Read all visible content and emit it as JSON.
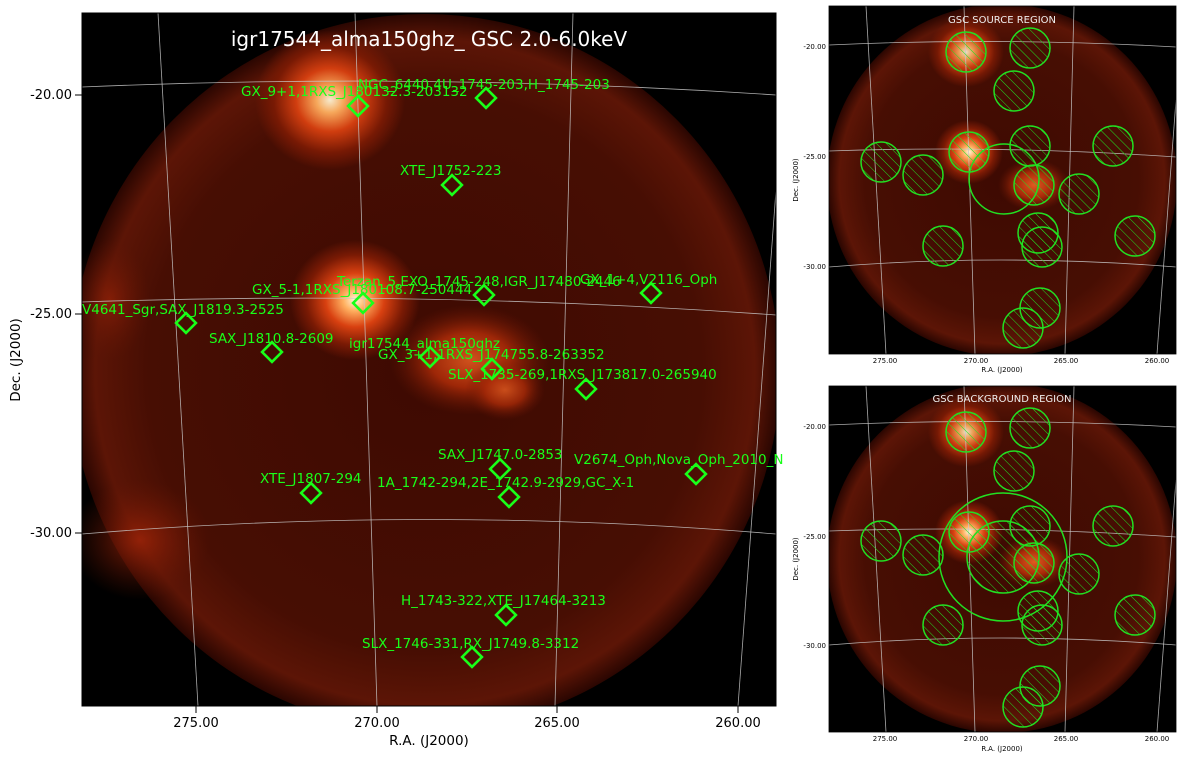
{
  "main": {
    "title": "igr17544_alma150ghz_ GSC 2.0-6.0keV",
    "xlabel": "R.A. (J2000)",
    "ylabel": "Dec. (J2000)",
    "xticks": [
      "275.00",
      "270.00",
      "265.00",
      "260.00"
    ],
    "yticks": [
      "-20.00",
      "-25.00",
      "-30.00"
    ],
    "sources": [
      {
        "label": "NGC_6440,4U_1745-203,H_1745-203"
      },
      {
        "label": "GX_9+1,1RXS_J180132.3-203132"
      },
      {
        "label": "XTE_J1752-223"
      },
      {
        "label": "Terzan_5,EXO_1745-248,IGR_J17480-2446"
      },
      {
        "label": "GX_5-1,1RXS_J180108.7-250444"
      },
      {
        "label": "GX_1+4,V2116_Oph"
      },
      {
        "label": "V4641_Sgr,SAX_J1819.3-2525"
      },
      {
        "label": "SAX_J1810.8-2609"
      },
      {
        "label": "igr17544_alma150ghz"
      },
      {
        "label": "GX_3+1,1RXS_J174755.8-263352"
      },
      {
        "label": "SLX_1735-269,1RXS_J173817.0-265940"
      },
      {
        "label": "SAX_J1747.0-2853"
      },
      {
        "label": "V2674_Oph,Nova_Oph_2010_N"
      },
      {
        "label": "XTE_J1807-294"
      },
      {
        "label": "1A_1742-294,2E_1742.9-2929,GC_X-1"
      },
      {
        "label": "H_1743-322,XTE_J17464-3213"
      },
      {
        "label": "SLX_1746-331,RX_J1749.8-3312"
      }
    ]
  },
  "source_panel": {
    "title": "GSC SOURCE REGION",
    "xlabel": "R.A. (J2000)",
    "ylabel": "Dec. (J2000)",
    "xticks": [
      "275.00",
      "270.00",
      "265.00",
      "260.00"
    ],
    "yticks": [
      "-20.00",
      "-25.00",
      "-30.00"
    ]
  },
  "background_panel": {
    "title": "GSC BACKGROUND REGION",
    "xlabel": "R.A. (J2000)",
    "ylabel": "Dec. (J2000)",
    "xticks": [
      "275.00",
      "270.00",
      "265.00",
      "260.00"
    ],
    "yticks": [
      "-20.00",
      "-25.00",
      "-30.00"
    ]
  },
  "colors": {
    "region": "#22e022",
    "marker": "#19ff19",
    "grid": "#c8c8c8"
  }
}
